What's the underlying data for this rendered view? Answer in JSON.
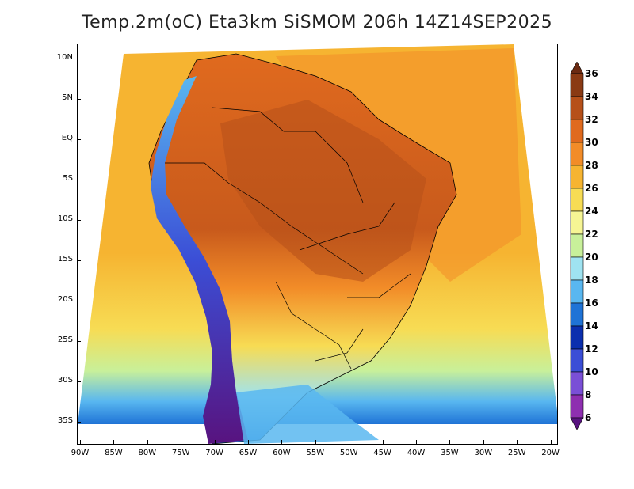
{
  "title": "Temp.2m(oC) Eta3km SiSMOM 206h 14Z14SEP2025",
  "map": {
    "lat_labels": [
      "10N",
      "5N",
      "EQ",
      "5S",
      "10S",
      "15S",
      "20S",
      "25S",
      "30S",
      "35S"
    ],
    "lon_labels": [
      "90W",
      "85W",
      "80W",
      "75W",
      "70W",
      "65W",
      "60W",
      "55W",
      "50W",
      "45W",
      "40W",
      "35W",
      "30W",
      "25W",
      "20W"
    ]
  },
  "colorbar": {
    "labels": [
      "36",
      "34",
      "32",
      "30",
      "28",
      "26",
      "24",
      "22",
      "20",
      "18",
      "16",
      "14",
      "12",
      "10",
      "8",
      "6"
    ],
    "colors": [
      "#6b2a12",
      "#8a3a14",
      "#b6501a",
      "#e06a1e",
      "#f28c28",
      "#f6b431",
      "#f7dc54",
      "#f6f594",
      "#c8f09a",
      "#9fe3f1",
      "#59b7f0",
      "#1f73d6",
      "#0b2fae",
      "#3b4ed6",
      "#7a4fd6",
      "#8e2fb0",
      "#58137f"
    ]
  }
}
